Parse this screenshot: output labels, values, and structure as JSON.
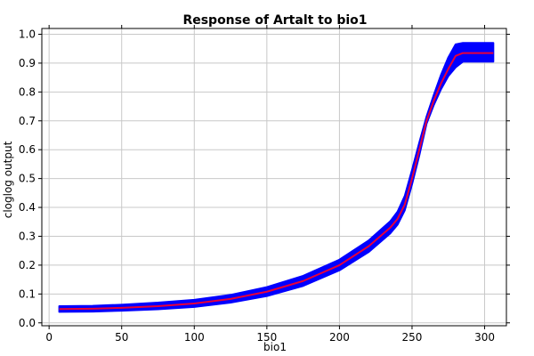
{
  "chart_data": {
    "type": "line",
    "title": "Response of Artalt to bio1",
    "xlabel": "bio1",
    "ylabel": "cloglog output",
    "xlim": [
      -5,
      315
    ],
    "ylim": [
      -0.01,
      1.02
    ],
    "xticks": [
      0,
      50,
      100,
      150,
      200,
      250,
      300
    ],
    "yticks": [
      0.0,
      0.1,
      0.2,
      0.3,
      0.4,
      0.5,
      0.6,
      0.7,
      0.8,
      0.9,
      1.0
    ],
    "grid": true,
    "legend": "none",
    "series": [
      {
        "color": "#e8003a",
        "band_color": "#0000ff",
        "x": [
          7,
          30,
          50,
          75,
          100,
          125,
          150,
          175,
          200,
          220,
          235,
          240,
          245,
          250,
          255,
          260,
          265,
          270,
          275,
          280,
          285,
          300,
          306
        ],
        "y": [
          0.048,
          0.049,
          0.052,
          0.058,
          0.067,
          0.083,
          0.108,
          0.145,
          0.2,
          0.265,
          0.33,
          0.36,
          0.41,
          0.5,
          0.6,
          0.7,
          0.77,
          0.83,
          0.88,
          0.925,
          0.935,
          0.935,
          0.935
        ],
        "band_upper": [
          0.058,
          0.059,
          0.063,
          0.07,
          0.08,
          0.097,
          0.124,
          0.163,
          0.219,
          0.285,
          0.352,
          0.385,
          0.44,
          0.53,
          0.625,
          0.715,
          0.79,
          0.86,
          0.92,
          0.965,
          0.97,
          0.97,
          0.97
        ],
        "band_lower": [
          0.038,
          0.039,
          0.042,
          0.047,
          0.055,
          0.07,
          0.093,
          0.128,
          0.182,
          0.245,
          0.31,
          0.34,
          0.39,
          0.48,
          0.58,
          0.69,
          0.755,
          0.81,
          0.855,
          0.885,
          0.905,
          0.905,
          0.905
        ]
      }
    ]
  }
}
